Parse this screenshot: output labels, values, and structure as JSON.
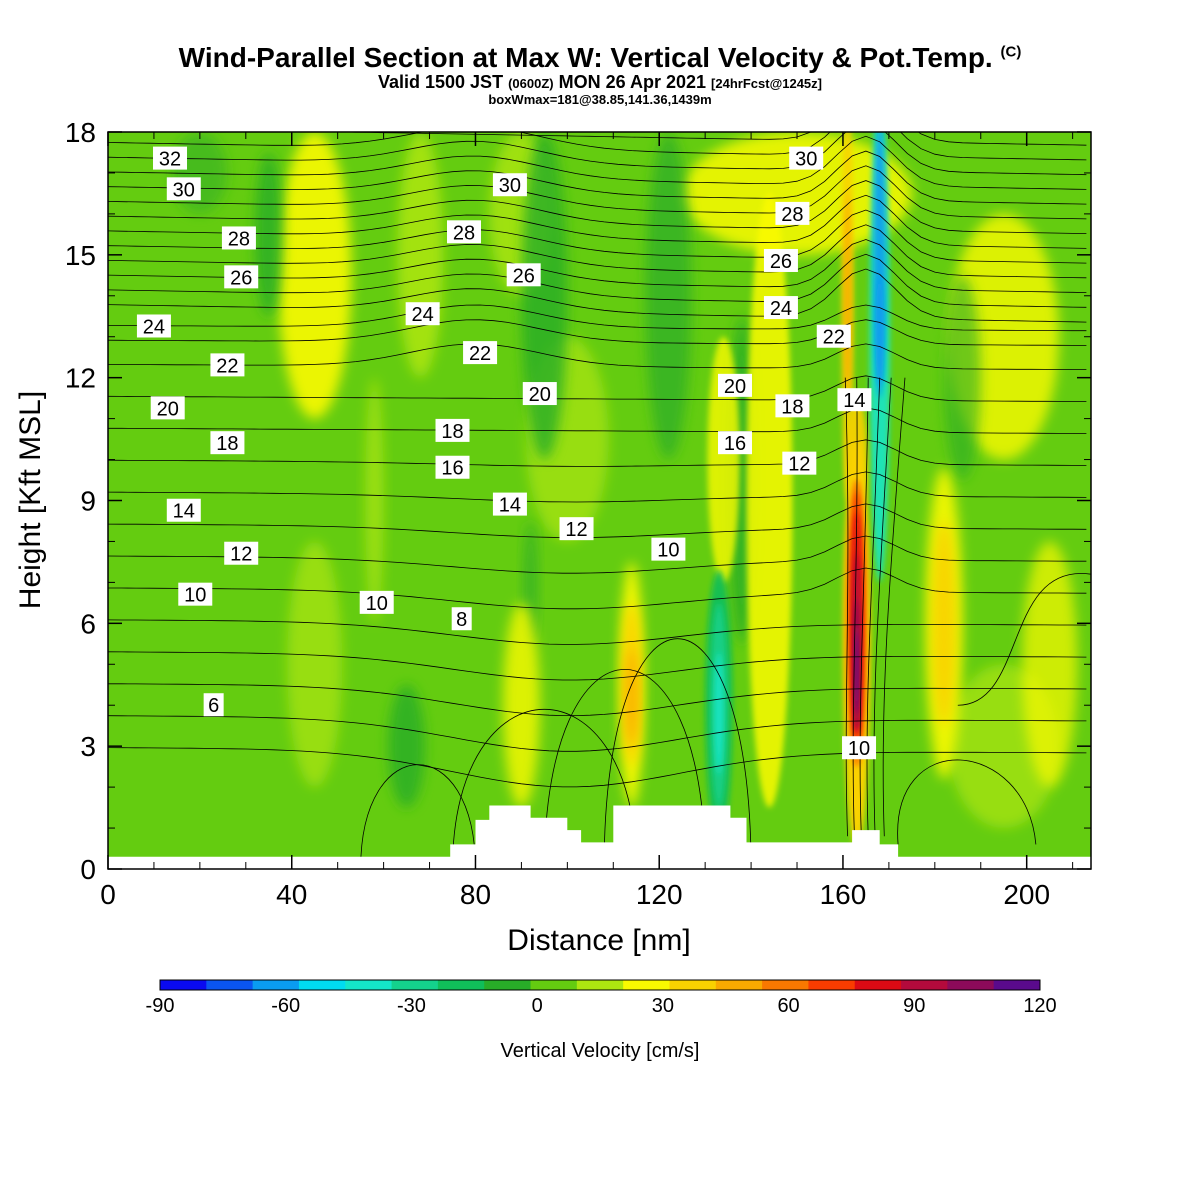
{
  "header": {
    "title": "Wind-Parallel Section at Max W: Vertical Velocity & Pot.Temp.",
    "copyright": "(C)",
    "valid_pre": "Valid 1500 JST",
    "valid_z": "(0600Z)",
    "valid_date": "MON 26 Apr 2021",
    "forecast": "[24hrFcst@1245z]",
    "boxinfo": "boxWmax=181@38.85,141.36,1439m"
  },
  "chart_data": {
    "type": "heatmap",
    "xlabel": "Distance [nm]",
    "ylabel": "Height [Kft MSL]",
    "xlim": [
      0,
      214
    ],
    "ylim": [
      0,
      18
    ],
    "xticks": [
      0,
      40,
      80,
      120,
      160,
      200
    ],
    "yticks": [
      0,
      3,
      6,
      9,
      12,
      15,
      18
    ],
    "colorbar": {
      "label": "Vertical Velocity [cm/s]",
      "range": [
        -90,
        120
      ],
      "tick_labels": [
        "-90",
        "-60",
        "-30",
        "0",
        "30",
        "60",
        "90",
        "120"
      ],
      "colors": [
        "#0a0af0",
        "#0a55f0",
        "#0a9cf0",
        "#00dcf0",
        "#14e6c8",
        "#14d28c",
        "#10be5a",
        "#28ac28",
        "#64cc10",
        "#aee610",
        "#fafa00",
        "#fad200",
        "#faaa00",
        "#fa7800",
        "#fa3c00",
        "#dc0a14",
        "#b40a3c",
        "#8c0a5a",
        "#5a0a8c"
      ]
    },
    "theta_labels": [
      {
        "text": "32",
        "x": 13.5,
        "y": 17.35
      },
      {
        "text": "30",
        "x": 16.5,
        "y": 16.6
      },
      {
        "text": "28",
        "x": 28.5,
        "y": 15.4
      },
      {
        "text": "26",
        "x": 29.0,
        "y": 14.45
      },
      {
        "text": "24",
        "x": 10.0,
        "y": 13.25
      },
      {
        "text": "22",
        "x": 26.0,
        "y": 12.3
      },
      {
        "text": "20",
        "x": 13.0,
        "y": 11.25
      },
      {
        "text": "18",
        "x": 26.0,
        "y": 10.4
      },
      {
        "text": "14",
        "x": 16.5,
        "y": 8.75
      },
      {
        "text": "12",
        "x": 29.0,
        "y": 7.7
      },
      {
        "text": "10",
        "x": 19.0,
        "y": 6.7
      },
      {
        "text": "6",
        "x": 23.0,
        "y": 4.0
      },
      {
        "text": "10",
        "x": 58.5,
        "y": 6.5
      },
      {
        "text": "8",
        "x": 77.0,
        "y": 6.1
      },
      {
        "text": "24",
        "x": 68.5,
        "y": 13.55
      },
      {
        "text": "28",
        "x": 77.5,
        "y": 15.55
      },
      {
        "text": "22",
        "x": 81.0,
        "y": 12.6
      },
      {
        "text": "18",
        "x": 75.0,
        "y": 10.7
      },
      {
        "text": "16",
        "x": 75.0,
        "y": 9.8
      },
      {
        "text": "30",
        "x": 87.5,
        "y": 16.7
      },
      {
        "text": "26",
        "x": 90.5,
        "y": 14.5
      },
      {
        "text": "20",
        "x": 94.0,
        "y": 11.6
      },
      {
        "text": "14",
        "x": 87.5,
        "y": 8.9
      },
      {
        "text": "12",
        "x": 102.0,
        "y": 8.3
      },
      {
        "text": "10",
        "x": 122.0,
        "y": 7.8
      },
      {
        "text": "20",
        "x": 136.5,
        "y": 11.8
      },
      {
        "text": "16",
        "x": 136.5,
        "y": 10.4
      },
      {
        "text": "30",
        "x": 152.0,
        "y": 17.35
      },
      {
        "text": "28",
        "x": 149.0,
        "y": 16.0
      },
      {
        "text": "26",
        "x": 146.5,
        "y": 14.85
      },
      {
        "text": "24",
        "x": 146.5,
        "y": 13.7
      },
      {
        "text": "22",
        "x": 158.0,
        "y": 13.0
      },
      {
        "text": "18",
        "x": 149.0,
        "y": 11.3
      },
      {
        "text": "14",
        "x": 162.5,
        "y": 11.45
      },
      {
        "text": "12",
        "x": 150.5,
        "y": 9.9
      },
      {
        "text": "10",
        "x": 163.5,
        "y": 2.95
      }
    ],
    "terrain": [
      [
        0,
        0.3
      ],
      [
        74.5,
        0.3
      ],
      [
        74.5,
        0.6
      ],
      [
        80,
        0.6
      ],
      [
        80,
        1.2
      ],
      [
        83,
        1.2
      ],
      [
        83,
        1.55
      ],
      [
        92,
        1.55
      ],
      [
        92,
        1.25
      ],
      [
        100,
        1.25
      ],
      [
        100,
        0.95
      ],
      [
        103,
        0.95
      ],
      [
        103,
        0.65
      ],
      [
        110,
        0.65
      ],
      [
        110,
        1.55
      ],
      [
        135.5,
        1.55
      ],
      [
        135.5,
        1.25
      ],
      [
        139,
        1.25
      ],
      [
        139,
        0.65
      ],
      [
        162,
        0.65
      ],
      [
        162,
        0.95
      ],
      [
        168,
        0.95
      ],
      [
        168,
        0.6
      ],
      [
        172,
        0.6
      ],
      [
        172,
        0.3
      ],
      [
        214,
        0.3
      ],
      [
        214,
        0
      ],
      [
        0,
        0
      ]
    ]
  }
}
